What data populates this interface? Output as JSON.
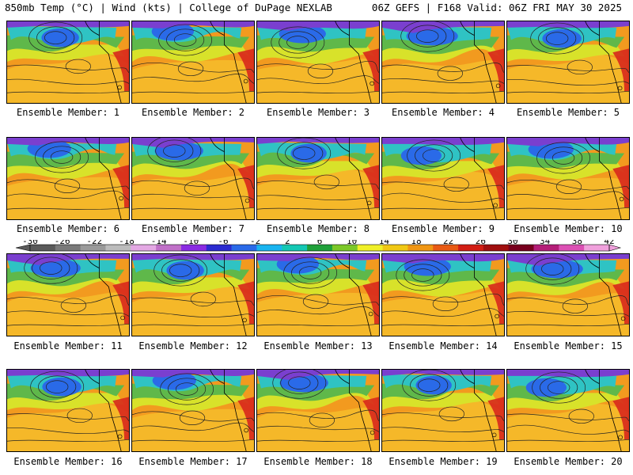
{
  "header": {
    "left": "850mb Temp (°C) | Wind (kts) | College of DuPage NEXLAB",
    "right": "06Z GEFS | F168 Valid: 06Z FRI MAY 30 2025"
  },
  "colorbar": {
    "tick_labels": [
      "-30",
      "-26",
      "-22",
      "-18",
      "-14",
      "-10",
      "-6",
      "-2",
      "2",
      "6",
      "10",
      "14",
      "18",
      "22",
      "26",
      "30",
      "34",
      "38",
      "42"
    ],
    "colors": [
      "#5a5a5a",
      "#7a7a7a",
      "#9a9a9a",
      "#bcbcbc",
      "#e3a8e3",
      "#c070c8",
      "#8a2be2",
      "#2b2bd0",
      "#2a6ae8",
      "#19b4f0",
      "#14c8b4",
      "#1fa03a",
      "#7cc828",
      "#f0f028",
      "#f0c814",
      "#f09614",
      "#e85a14",
      "#d21e14",
      "#a00f0f",
      "#78001e",
      "#b41e78",
      "#dc50b4",
      "#f0a0dc"
    ]
  },
  "map_colors": {
    "water_warm": "#f29a1f",
    "subtropic": "#f5b829",
    "mid_yellow": "#d8e22a",
    "green": "#5fb84a",
    "teal": "#2fc3c3",
    "blue": "#2a6ae8",
    "purple": "#7a3fcf",
    "hot_coast": "#d8281c",
    "contour": "#222222"
  },
  "members": [
    {
      "label": "Ensemble Member: 1"
    },
    {
      "label": "Ensemble Member: 2"
    },
    {
      "label": "Ensemble Member: 3"
    },
    {
      "label": "Ensemble Member: 4"
    },
    {
      "label": "Ensemble Member: 5"
    },
    {
      "label": "Ensemble Member: 6"
    },
    {
      "label": "Ensemble Member: 7"
    },
    {
      "label": "Ensemble Member: 8"
    },
    {
      "label": "Ensemble Member: 9"
    },
    {
      "label": "Ensemble Member: 10"
    },
    {
      "label": "Ensemble Member: 11"
    },
    {
      "label": "Ensemble Member: 12"
    },
    {
      "label": "Ensemble Member: 13"
    },
    {
      "label": "Ensemble Member: 14"
    },
    {
      "label": "Ensemble Member: 15"
    },
    {
      "label": "Ensemble Member: 16"
    },
    {
      "label": "Ensemble Member: 17"
    },
    {
      "label": "Ensemble Member: 18"
    },
    {
      "label": "Ensemble Member: 19"
    },
    {
      "label": "Ensemble Member: 20"
    }
  ]
}
